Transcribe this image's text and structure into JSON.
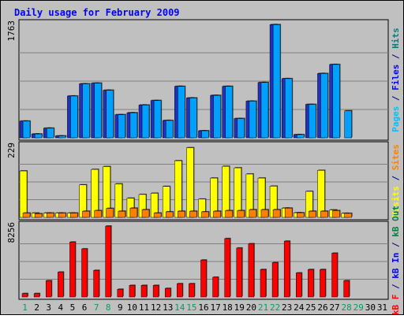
{
  "chart_data": {
    "type": "bar",
    "title": "Daily usage for February 2009",
    "categories": [
      "1",
      "2",
      "3",
      "4",
      "5",
      "6",
      "7",
      "8",
      "9",
      "10",
      "11",
      "12",
      "13",
      "14",
      "15",
      "16",
      "17",
      "18",
      "19",
      "20",
      "21",
      "22",
      "23",
      "24",
      "25",
      "26",
      "27",
      "28",
      "29",
      "30",
      "31"
    ],
    "weekend_days": [
      "1",
      "7",
      "8",
      "14",
      "15",
      "21",
      "22",
      "28",
      "29"
    ],
    "panels": [
      {
        "axis_max_label": "1763",
        "ylim": [
          0,
          1763
        ],
        "right_label": [
          {
            "text": "Pages",
            "color": "#00c0ff"
          },
          {
            "text": " / ",
            "color": "#000080"
          },
          {
            "text": "Files",
            "color": "#0000ff"
          },
          {
            "text": " / ",
            "color": "#000080"
          },
          {
            "text": "Hits",
            "color": "#008080"
          }
        ],
        "series": [
          {
            "name": "Files",
            "color": "#2030c0",
            "values": [
              260,
              60,
              150,
              30,
              650,
              840,
              850,
              740,
              360,
              390,
              510,
              580,
              270,
              800,
              620,
              110,
              660,
              800,
              300,
              570,
              860,
              1760,
              920,
              50,
              520,
              1000,
              1140,
              0,
              0,
              0,
              0
            ]
          },
          {
            "name": "Hits",
            "color": "#00a0ff",
            "values": [
              260,
              60,
              150,
              30,
              650,
              840,
              850,
              740,
              360,
              390,
              510,
              580,
              270,
              800,
              620,
              110,
              660,
              800,
              300,
              570,
              860,
              1760,
              920,
              50,
              520,
              1000,
              1140,
              420,
              0,
              0,
              0
            ]
          }
        ]
      },
      {
        "axis_max_label": "229",
        "ylim": [
          0,
          229
        ],
        "right_label": [
          {
            "text": "Visits",
            "color": "#ffff00"
          },
          {
            "text": " / ",
            "color": "#000080"
          },
          {
            "text": "Sites",
            "color": "#ff8000"
          }
        ],
        "series": [
          {
            "name": "Visits",
            "color": "#ffff00",
            "values": [
              150,
              14,
              14,
              14,
              14,
              105,
              155,
              164,
              108,
              62,
              74,
              78,
              100,
              183,
              225,
              59,
              127,
              165,
              160,
              140,
              127,
              101,
              30,
              15,
              84,
              152,
              24,
              13,
              0,
              0,
              0
            ]
          },
          {
            "name": "Sites",
            "color": "#ff8000",
            "values": [
              14,
              12,
              14,
              14,
              14,
              20,
              22,
              29,
              20,
              30,
              25,
              14,
              18,
              20,
              20,
              18,
              20,
              22,
              22,
              25,
              25,
              25,
              30,
              15,
              20,
              20,
              22,
              13,
              0,
              0,
              0
            ]
          }
        ]
      },
      {
        "axis_max_label": "8256",
        "ylim": [
          0,
          8256
        ],
        "right_label": [
          {
            "text": "kB F",
            "color": "#ff0000"
          },
          {
            "text": " / ",
            "color": "#000080"
          },
          {
            "text": "kB In",
            "color": "#0000ff"
          },
          {
            "text": " / ",
            "color": "#000080"
          },
          {
            "text": "kB Out",
            "color": "#008040"
          }
        ],
        "series": [
          {
            "name": "kB F",
            "color": "#ff0000",
            "values": [
              400,
              400,
              1900,
              2900,
              6400,
              5600,
              3100,
              8256,
              900,
              1350,
              1350,
              1350,
              1000,
              1550,
              1550,
              4300,
              2300,
              6800,
              5700,
              6200,
              3200,
              4000,
              6500,
              2800,
              3200,
              3200,
              5100,
              1900,
              0,
              0,
              0
            ]
          }
        ]
      }
    ]
  }
}
